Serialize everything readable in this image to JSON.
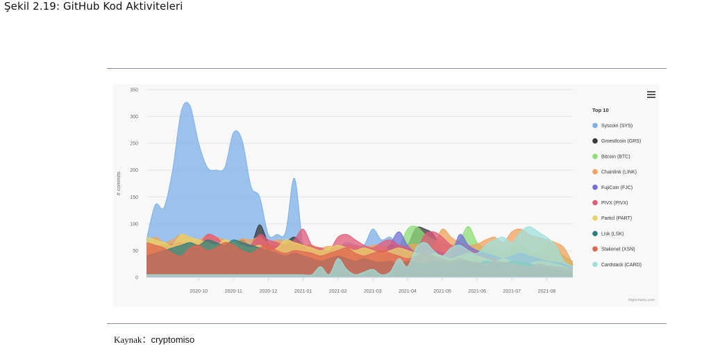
{
  "caption": "Şekil 2.19: GitHub Kod Aktiviteleri",
  "source": {
    "label": "Kaynak：",
    "value": "cryptomiso"
  },
  "chart": {
    "credit": "Highcharts.com"
  },
  "chart_data": {
    "type": "area",
    "ylabel": "# commits",
    "xlabel": "",
    "ylim": [
      0,
      350
    ],
    "yticks": [
      0,
      50,
      100,
      150,
      200,
      250,
      300,
      350
    ],
    "grid": true,
    "legend_title": "Top 10",
    "legend_position": "right",
    "xtick_labels": [
      "2020-10",
      "2020-11",
      "2020-12",
      "2021-01",
      "2021-02",
      "2021-03",
      "2021-04",
      "2021-05",
      "2021-06",
      "2021-07",
      "2021-08"
    ],
    "xtick_index": [
      6,
      10,
      14,
      18,
      22,
      26,
      30,
      34,
      38,
      42,
      46
    ],
    "x_count": 50,
    "series": [
      {
        "name": "Syscoin (SYS)",
        "color": "#7cb0e8",
        "values": [
          70,
          135,
          130,
          200,
          310,
          320,
          250,
          205,
          200,
          205,
          270,
          255,
          170,
          150,
          80,
          80,
          85,
          185,
          60,
          55,
          55,
          52,
          55,
          65,
          60,
          60,
          90,
          70,
          75,
          58,
          55,
          52,
          50,
          45,
          45,
          40,
          35,
          30,
          28,
          30,
          30,
          28,
          25,
          25,
          22,
          20,
          20,
          18,
          15,
          15
        ]
      },
      {
        "name": "Groestlcoin (GRS)",
        "color": "#3a3a3e",
        "values": [
          55,
          60,
          60,
          62,
          60,
          65,
          62,
          60,
          62,
          65,
          60,
          70,
          60,
          98,
          65,
          60,
          65,
          75,
          60,
          45,
          40,
          45,
          40,
          38,
          40,
          45,
          40,
          42,
          60,
          55,
          60,
          92,
          90,
          80,
          50,
          45,
          40,
          35,
          35,
          32,
          30,
          30,
          28,
          28,
          25,
          22,
          22,
          20,
          20,
          18
        ]
      },
      {
        "name": "Bitcoin (BTC)",
        "color": "#8ede76",
        "values": [
          40,
          45,
          50,
          45,
          50,
          55,
          50,
          45,
          50,
          48,
          50,
          55,
          50,
          52,
          50,
          48,
          50,
          52,
          50,
          45,
          45,
          50,
          45,
          48,
          45,
          50,
          55,
          50,
          45,
          55,
          90,
          95,
          80,
          70,
          65,
          60,
          70,
          95,
          65,
          55,
          50,
          45,
          55,
          60,
          50,
          45,
          65,
          55,
          40,
          30
        ]
      },
      {
        "name": "Chainlink (LINK)",
        "color": "#f0a35e",
        "values": [
          60,
          75,
          65,
          70,
          80,
          75,
          70,
          78,
          75,
          70,
          65,
          72,
          70,
          75,
          65,
          70,
          68,
          65,
          60,
          60,
          55,
          58,
          55,
          60,
          58,
          55,
          60,
          58,
          55,
          60,
          60,
          62,
          58,
          60,
          90,
          75,
          65,
          60,
          62,
          70,
          75,
          65,
          85,
          90,
          80,
          75,
          70,
          65,
          55,
          25
        ]
      },
      {
        "name": "FujiCoin (FJC)",
        "color": "#7070d8",
        "values": [
          30,
          35,
          32,
          30,
          28,
          30,
          32,
          30,
          28,
          30,
          32,
          30,
          28,
          30,
          32,
          30,
          28,
          30,
          32,
          30,
          28,
          30,
          32,
          30,
          28,
          30,
          32,
          30,
          60,
          85,
          60,
          45,
          40,
          50,
          45,
          40,
          80,
          60,
          50,
          45,
          40,
          35,
          40,
          45,
          40,
          35,
          30,
          28,
          25,
          20
        ]
      },
      {
        "name": "PIVX (PIVX)",
        "color": "#e05a78",
        "values": [
          55,
          50,
          45,
          60,
          65,
          55,
          60,
          80,
          75,
          60,
          55,
          65,
          60,
          80,
          70,
          65,
          60,
          70,
          90,
          60,
          55,
          50,
          75,
          80,
          70,
          60,
          55,
          65,
          70,
          60,
          55,
          50,
          80,
          85,
          75,
          60,
          55,
          50,
          45,
          40,
          35,
          30,
          28,
          25,
          22,
          20,
          18,
          15,
          12,
          10
        ]
      },
      {
        "name": "Particl (PART)",
        "color": "#e8d26a",
        "values": [
          75,
          70,
          65,
          60,
          80,
          75,
          70,
          65,
          60,
          70,
          65,
          60,
          55,
          60,
          50,
          55,
          70,
          65,
          60,
          55,
          50,
          55,
          60,
          55,
          50,
          55,
          50,
          45,
          50,
          55,
          50,
          45,
          40,
          45,
          40,
          35,
          40,
          45,
          40,
          35,
          30,
          35,
          30,
          28,
          25,
          30,
          28,
          25,
          20,
          15
        ]
      },
      {
        "name": "Lisk (LSK)",
        "color": "#2f7d7b",
        "values": [
          40,
          45,
          50,
          55,
          60,
          65,
          60,
          70,
          65,
          60,
          70,
          65,
          60,
          55,
          50,
          45,
          40,
          45,
          40,
          35,
          30,
          35,
          40,
          35,
          30,
          35,
          30,
          28,
          30,
          25,
          30,
          28,
          25,
          30,
          28,
          25,
          30,
          28,
          25,
          30,
          28,
          25,
          30,
          28,
          25,
          20,
          18,
          15,
          12,
          10
        ]
      },
      {
        "name": "Stakenet (XSN)",
        "color": "#e06552",
        "values": [
          65,
          60,
          55,
          45,
          40,
          55,
          60,
          50,
          55,
          65,
          60,
          50,
          45,
          55,
          60,
          50,
          45,
          50,
          48,
          45,
          40,
          45,
          50,
          55,
          45,
          40,
          45,
          50,
          45,
          40,
          35,
          40,
          45,
          40,
          35,
          30,
          35,
          30,
          28,
          25,
          30,
          28,
          25,
          22,
          20,
          25,
          22,
          20,
          18,
          15
        ]
      },
      {
        "name": "Cardstack (CARD)",
        "color": "#9fe0dc",
        "values": [
          5,
          5,
          5,
          5,
          5,
          5,
          5,
          5,
          5,
          5,
          5,
          5,
          5,
          5,
          5,
          5,
          5,
          5,
          5,
          5,
          20,
          5,
          35,
          15,
          5,
          10,
          15,
          5,
          10,
          35,
          20,
          55,
          65,
          50,
          40,
          55,
          60,
          50,
          45,
          60,
          70,
          75,
          65,
          85,
          95,
          85,
          75,
          60,
          30,
          20
        ]
      }
    ]
  }
}
